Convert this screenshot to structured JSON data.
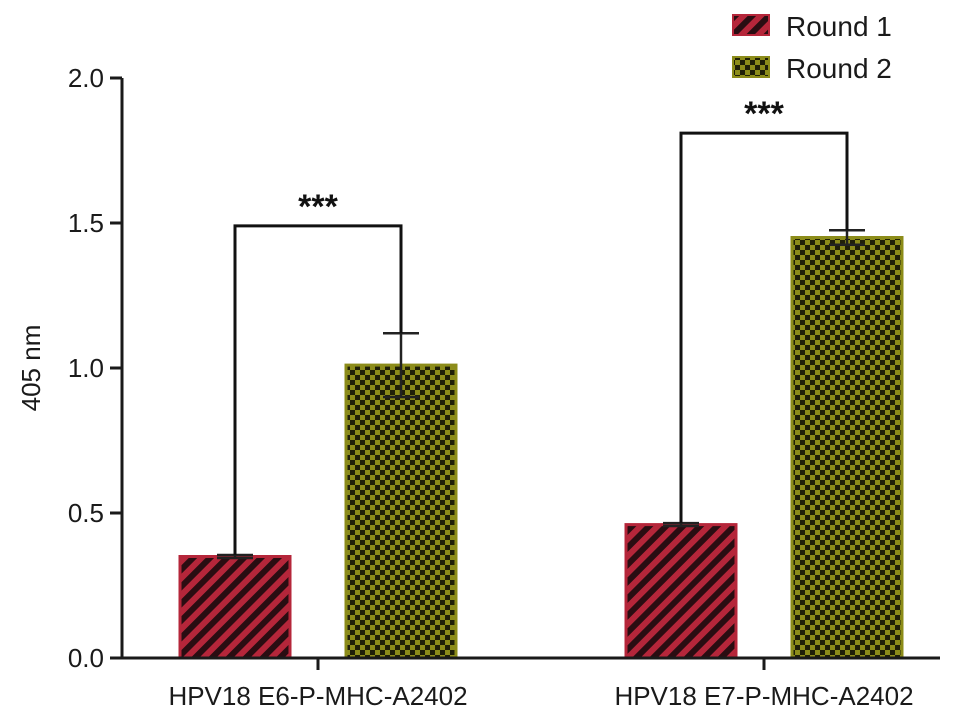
{
  "chart_data": {
    "type": "bar",
    "ylabel": "405 nm",
    "ylim": [
      0,
      2.0
    ],
    "yticks": [
      0.0,
      0.5,
      1.0,
      1.5,
      2.0
    ],
    "ytick_labels": [
      "0.0",
      "0.5",
      "1.0",
      "1.5",
      "2.0"
    ],
    "categories": [
      "HPV18 E6-P-MHC-A2402",
      "HPV18 E7-P-MHC-A2402"
    ],
    "series": [
      {
        "name": "Round 1",
        "values": [
          0.35,
          0.46
        ],
        "errors": [
          0.005,
          0.005
        ],
        "color": "#b5263a",
        "pattern": "diagonal-stripes"
      },
      {
        "name": "Round 2",
        "values": [
          1.01,
          1.45
        ],
        "errors": [
          0.11,
          0.025
        ],
        "color": "#8c8c1a",
        "pattern": "checkerboard"
      }
    ],
    "significance": [
      {
        "category_index": 0,
        "label": "***",
        "bracket_y": 1.49
      },
      {
        "category_index": 1,
        "label": "***",
        "bracket_y": 1.81
      }
    ],
    "legend_position": "top-right",
    "grid": false
  }
}
